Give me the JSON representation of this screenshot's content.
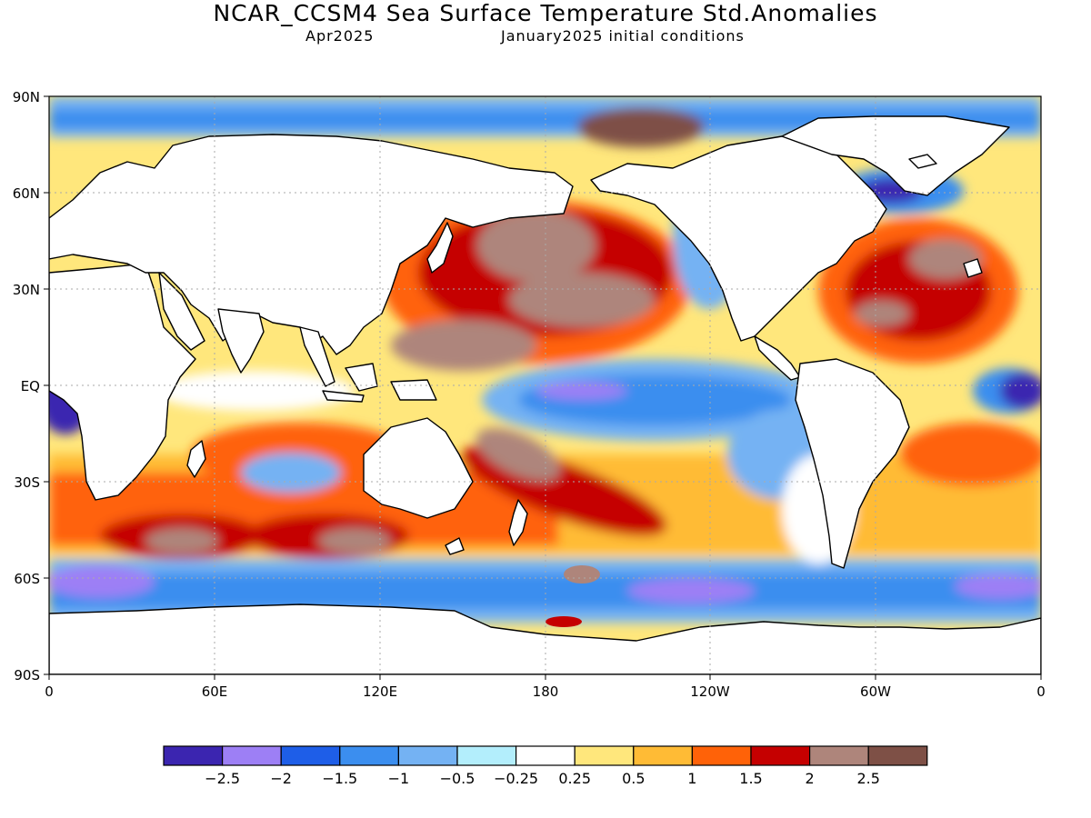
{
  "title": "NCAR_CCSM4 Sea Surface Temperature Std.Anomalies",
  "subtitle_left": "Apr2025",
  "subtitle_right": "January2025 initial conditions",
  "lat_labels": [
    "90N",
    "60N",
    "30N",
    "EQ",
    "30S",
    "60S",
    "90S"
  ],
  "lon_labels": [
    "0",
    "60E",
    "120E",
    "180",
    "120W",
    "60W",
    "0"
  ],
  "colorbar": {
    "colors": [
      "#3b25b0",
      "#9d7ff5",
      "#1e5ee8",
      "#3b8eef",
      "#74b2f3",
      "#b3eefc",
      "#ffffff",
      "#ffe77c",
      "#ffbb35",
      "#ff6208",
      "#c50000",
      "#ae857b",
      "#7e5046"
    ],
    "labels": [
      "-2.5",
      "-2",
      "-1.5",
      "-1",
      "-0.5",
      "-0.25",
      "0.25",
      "0.5",
      "1",
      "1.5",
      "2",
      "2.5"
    ]
  },
  "colors": {
    "land": "#ffffff",
    "coast": "#000000",
    "grid": "#aaaaaa"
  }
}
